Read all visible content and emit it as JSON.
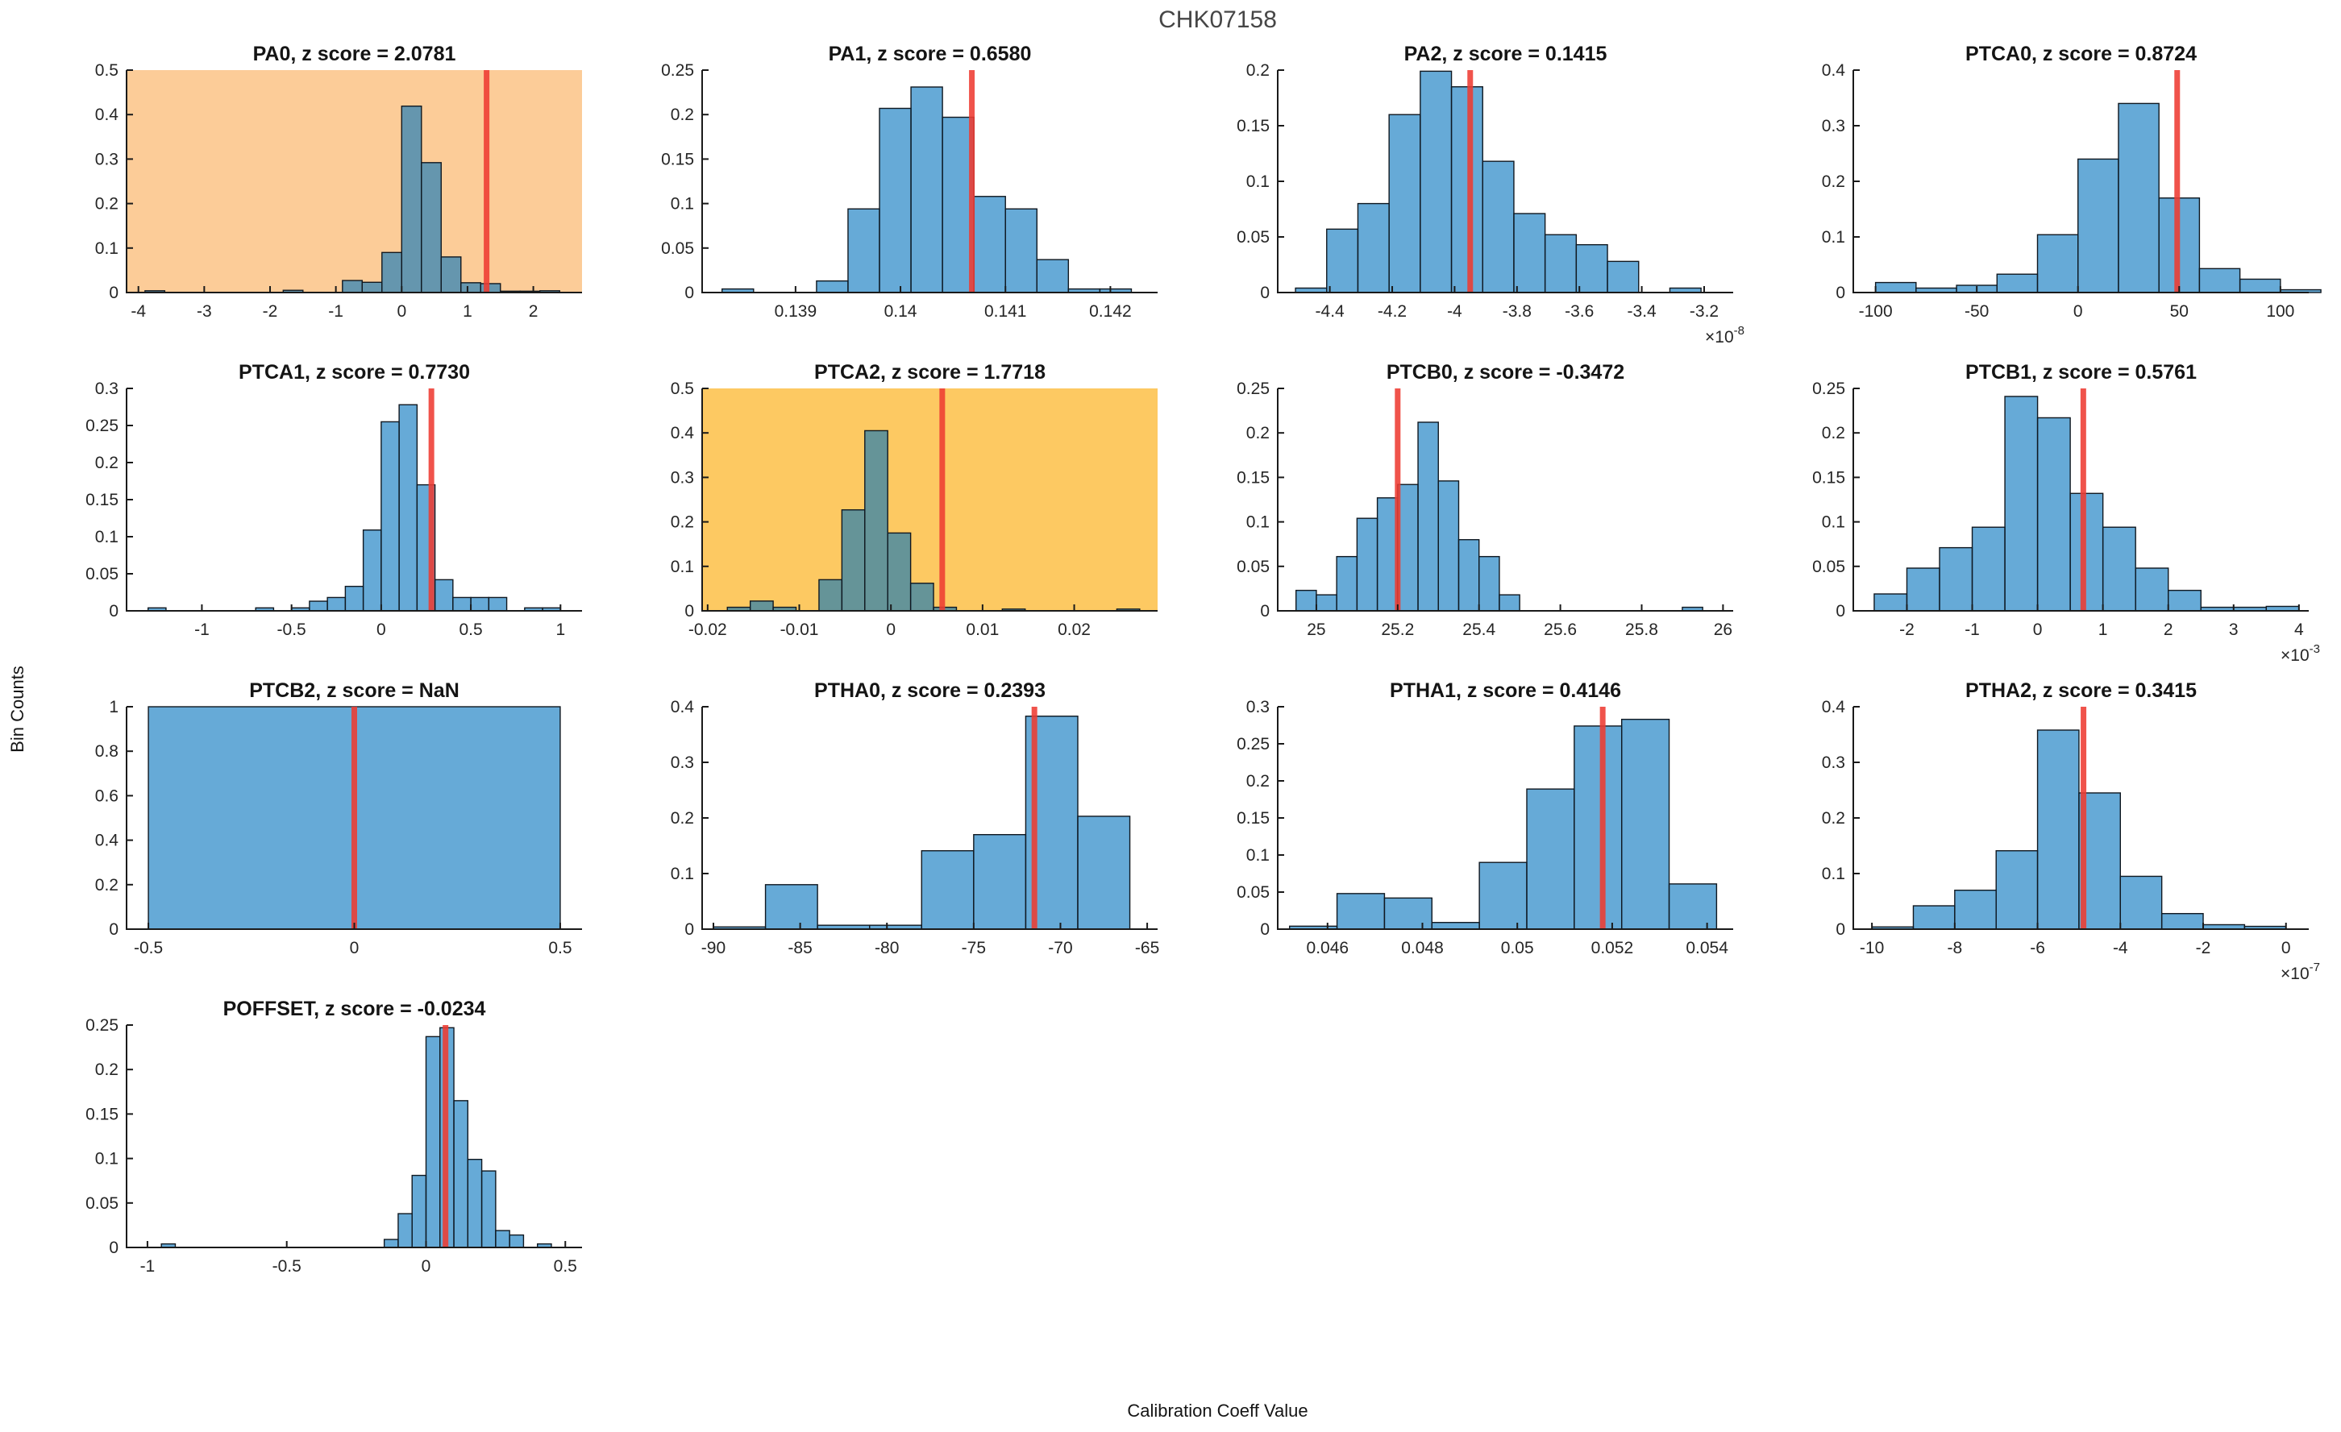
{
  "figure": {
    "title": "CHK07158",
    "xlabel": "Calibration Coeff Value",
    "ylabel": "Bin Counts"
  },
  "style": {
    "bar_color": "#0072BD",
    "bar_alpha": 0.6,
    "bar_edge_color": "#101820",
    "red_line_color": "#EE3B32",
    "highlight_orange": "#FCCC98",
    "highlight_yellow": "#FDC962",
    "spine_color": "#1a1a1a",
    "tick_label_color": "#262626",
    "title_color": "#141414"
  },
  "chart_data": [
    {
      "type": "bar",
      "param": "PA0",
      "z_score": "2.0781",
      "title": "PA0, z score = 2.0781",
      "row": 0,
      "col": 0,
      "highlight": "#FCCC98",
      "xlim": [
        -4.18,
        2.74
      ],
      "ylim": [
        0,
        0.5
      ],
      "xticks": [
        -4,
        -3,
        -2,
        -1,
        0,
        1,
        2
      ],
      "xtick_labels": [
        "-4",
        "-3",
        "-2",
        "-1",
        "0",
        "1",
        "2"
      ],
      "yticks": [
        0,
        0.1,
        0.2,
        0.3,
        0.4,
        0.5
      ],
      "ytick_labels": [
        "0",
        "0.1",
        "0.2",
        "0.3",
        "0.4",
        "0.5"
      ],
      "bin_start": -3.9,
      "bin_width": 0.3,
      "heights": [
        0.004,
        0,
        0,
        0,
        0,
        0,
        0,
        0.005,
        0,
        0,
        0.027,
        0.023,
        0.09,
        0.419,
        0.292,
        0.08,
        0.022,
        0.02,
        0.003,
        0.003,
        0.004
      ],
      "red_line": 1.29,
      "x_exponent": null
    },
    {
      "type": "bar",
      "param": "PA1",
      "z_score": "0.6580",
      "title": "PA1, z score = 0.6580",
      "row": 0,
      "col": 1,
      "highlight": null,
      "xlim": [
        0.13811,
        0.14245
      ],
      "ylim": [
        0,
        0.25
      ],
      "xticks": [
        0.139,
        0.14,
        0.141,
        0.142
      ],
      "xtick_labels": [
        "0.139",
        "0.14",
        "0.141",
        "0.142"
      ],
      "yticks": [
        0,
        0.05,
        0.1,
        0.15,
        0.2,
        0.25
      ],
      "ytick_labels": [
        "0",
        "0.05",
        "0.1",
        "0.15",
        "0.2",
        "0.25"
      ],
      "bin_start": 0.1383,
      "bin_width": 0.0003,
      "heights": [
        0.004,
        0,
        0,
        0.013,
        0.094,
        0.207,
        0.231,
        0.197,
        0.108,
        0.094,
        0.037,
        0.004,
        0.004
      ],
      "red_line": 0.14068,
      "x_exponent": null
    },
    {
      "type": "bar",
      "param": "PA2",
      "z_score": "0.1415",
      "title": "PA2, z score = 0.1415",
      "row": 0,
      "col": 2,
      "highlight": null,
      "xlim": [
        -4.567,
        -3.107
      ],
      "ylim": [
        0,
        0.2
      ],
      "xticks": [
        -4.4,
        -4.2,
        -4,
        -3.8,
        -3.6,
        -3.4,
        -3.2
      ],
      "xtick_labels": [
        "-4.4",
        "-4.2",
        "-4",
        "-3.8",
        "-3.6",
        "-3.4",
        "-3.2"
      ],
      "yticks": [
        0,
        0.05,
        0.1,
        0.15,
        0.2
      ],
      "ytick_labels": [
        "0",
        "0.05",
        "0.1",
        "0.15",
        "0.2"
      ],
      "bin_start": -4.51,
      "bin_width": 0.1,
      "heights": [
        0.004,
        0.057,
        0.08,
        0.16,
        0.199,
        0.185,
        0.118,
        0.071,
        0.052,
        0.043,
        0.028,
        0,
        0.004
      ],
      "red_line": -3.95,
      "x_exponent": "-8"
    },
    {
      "type": "bar",
      "param": "PTCA0",
      "z_score": "0.8724",
      "title": "PTCA0, z score = 0.8724",
      "row": 0,
      "col": 3,
      "highlight": null,
      "xlim": [
        -111,
        114
      ],
      "ylim": [
        0,
        0.4
      ],
      "xticks": [
        -100,
        -50,
        0,
        50,
        100
      ],
      "xtick_labels": [
        "-100",
        "-50",
        "0",
        "50",
        "100"
      ],
      "yticks": [
        0,
        0.1,
        0.2,
        0.3,
        0.4
      ],
      "ytick_labels": [
        "0",
        "0.1",
        "0.2",
        "0.3",
        "0.4"
      ],
      "bin_start": -100,
      "bin_width": 20,
      "heights": [
        0.018,
        0.008,
        0.013,
        0.033,
        0.104,
        0.24,
        0.34,
        0.17,
        0.043,
        0.024,
        0.005
      ],
      "red_line": 49,
      "x_exponent": null
    },
    {
      "type": "bar",
      "param": "PTCA1",
      "z_score": "0.7730",
      "title": "PTCA1, z score = 0.7730",
      "row": 1,
      "col": 0,
      "highlight": null,
      "xlim": [
        -1.42,
        1.12
      ],
      "ylim": [
        0,
        0.3
      ],
      "xticks": [
        -1,
        -0.5,
        0,
        0.5,
        1
      ],
      "xtick_labels": [
        "-1",
        "-0.5",
        "0",
        "0.5",
        "1"
      ],
      "yticks": [
        0,
        0.05,
        0.1,
        0.15,
        0.2,
        0.25,
        0.3
      ],
      "ytick_labels": [
        "0",
        "0.05",
        "0.1",
        "0.15",
        "0.2",
        "0.25",
        "0.3"
      ],
      "bin_start": -1.3,
      "bin_width": 0.1,
      "heights": [
        0.004,
        0,
        0,
        0,
        0,
        0,
        0.004,
        0,
        0.004,
        0.013,
        0.018,
        0.033,
        0.109,
        0.255,
        0.278,
        0.17,
        0.042,
        0.018,
        0.018,
        0.018,
        0,
        0.004,
        0.004
      ],
      "red_line": 0.28,
      "x_exponent": null
    },
    {
      "type": "bar",
      "param": "PTCA2",
      "z_score": "1.7718",
      "title": "PTCA2, z score = 1.7718",
      "row": 1,
      "col": 1,
      "highlight": "#FDC962",
      "xlim": [
        -0.0206,
        0.0291
      ],
      "ylim": [
        0,
        0.5
      ],
      "xticks": [
        -0.02,
        -0.01,
        0,
        0.01,
        0.02
      ],
      "xtick_labels": [
        "-0.02",
        "-0.01",
        "0",
        "0.01",
        "0.02"
      ],
      "yticks": [
        0,
        0.1,
        0.2,
        0.3,
        0.4,
        0.5
      ],
      "ytick_labels": [
        "0",
        "0.1",
        "0.2",
        "0.3",
        "0.4",
        "0.5"
      ],
      "bin_start": -0.01785,
      "bin_width": 0.0025,
      "heights": [
        0.008,
        0.022,
        0.008,
        0,
        0.07,
        0.227,
        0.405,
        0.175,
        0.062,
        0.008,
        0,
        0,
        0.004,
        0,
        0,
        0,
        0,
        0.004
      ],
      "red_line": 0.0056,
      "x_exponent": null
    },
    {
      "type": "bar",
      "param": "PTCB0",
      "z_score": "-0.3472",
      "title": "PTCB0, z score = -0.3472",
      "row": 1,
      "col": 2,
      "highlight": null,
      "xlim": [
        24.905,
        26.025
      ],
      "ylim": [
        0,
        0.25
      ],
      "xticks": [
        25,
        25.2,
        25.4,
        25.6,
        25.8,
        26
      ],
      "xtick_labels": [
        "25",
        "25.2",
        "25.4",
        "25.6",
        "25.8",
        "26"
      ],
      "yticks": [
        0,
        0.05,
        0.1,
        0.15,
        0.2,
        0.25
      ],
      "ytick_labels": [
        "0",
        "0.05",
        "0.1",
        "0.15",
        "0.2",
        "0.25"
      ],
      "bin_start": 24.95,
      "bin_width": 0.05,
      "heights": [
        0.023,
        0.018,
        0.061,
        0.104,
        0.127,
        0.142,
        0.212,
        0.146,
        0.08,
        0.061,
        0.018,
        0,
        0,
        0,
        0,
        0,
        0,
        0,
        0,
        0.004
      ],
      "red_line": 25.2,
      "x_exponent": null
    },
    {
      "type": "bar",
      "param": "PTCB1",
      "z_score": "0.5761",
      "title": "PTCB1, z score = 0.5761",
      "row": 1,
      "col": 3,
      "highlight": null,
      "xlim": [
        -2.82,
        4.15
      ],
      "ylim": [
        0,
        0.25
      ],
      "xticks": [
        -2,
        -1,
        0,
        1,
        2,
        3,
        4
      ],
      "xtick_labels": [
        "-2",
        "-1",
        "0",
        "1",
        "2",
        "3",
        "4"
      ],
      "yticks": [
        0,
        0.05,
        0.1,
        0.15,
        0.2,
        0.25
      ],
      "ytick_labels": [
        "0",
        "0.05",
        "0.1",
        "0.15",
        "0.2",
        "0.25"
      ],
      "bin_start": -2.5,
      "bin_width": 0.5,
      "heights": [
        0.019,
        0.048,
        0.071,
        0.094,
        0.241,
        0.217,
        0.132,
        0.094,
        0.048,
        0.023,
        0.004,
        0.004,
        0.005
      ],
      "red_line": 0.7,
      "x_exponent": "-3"
    },
    {
      "type": "bar",
      "param": "PTCB2",
      "z_score": "NaN",
      "title": "PTCB2, z score = NaN",
      "row": 2,
      "col": 0,
      "highlight": null,
      "xlim": [
        -0.553,
        0.553
      ],
      "ylim": [
        0,
        1
      ],
      "xticks": [
        -0.5,
        0,
        0.5
      ],
      "xtick_labels": [
        "-0.5",
        "0",
        "0.5"
      ],
      "yticks": [
        0,
        0.2,
        0.4,
        0.6,
        0.8,
        1
      ],
      "ytick_labels": [
        "0",
        "0.2",
        "0.4",
        "0.6",
        "0.8",
        "1"
      ],
      "bin_start": -0.5,
      "bin_width": 1.0,
      "heights": [
        1
      ],
      "red_line": 0,
      "x_exponent": null
    },
    {
      "type": "bar",
      "param": "PTHA0",
      "z_score": "0.2393",
      "title": "PTHA0, z score = 0.2393",
      "row": 2,
      "col": 1,
      "highlight": null,
      "xlim": [
        -90.65,
        -64.4
      ],
      "ylim": [
        0,
        0.4
      ],
      "xticks": [
        -90,
        -85,
        -80,
        -75,
        -70,
        -65
      ],
      "xtick_labels": [
        "-90",
        "-85",
        "-80",
        "-75",
        "-70",
        "-65"
      ],
      "yticks": [
        0,
        0.1,
        0.2,
        0.3,
        0.4
      ],
      "ytick_labels": [
        "0",
        "0.1",
        "0.2",
        "0.3",
        "0.4"
      ],
      "bin_start": -90,
      "bin_width": 3,
      "heights": [
        0.004,
        0.08,
        0.007,
        0.007,
        0.141,
        0.17,
        0.383,
        0.203
      ],
      "red_line": -71.5,
      "x_exponent": null
    },
    {
      "type": "bar",
      "param": "PTHA1",
      "z_score": "0.4146",
      "title": "PTHA1, z score = 0.4146",
      "row": 2,
      "col": 2,
      "highlight": null,
      "xlim": [
        0.04495,
        0.05455
      ],
      "ylim": [
        0,
        0.3
      ],
      "xticks": [
        0.046,
        0.048,
        0.05,
        0.052,
        0.054
      ],
      "xtick_labels": [
        "0.046",
        "0.048",
        "0.05",
        "0.052",
        "0.054"
      ],
      "yticks": [
        0,
        0.05,
        0.1,
        0.15,
        0.2,
        0.25,
        0.3
      ],
      "ytick_labels": [
        "0",
        "0.05",
        "0.1",
        "0.15",
        "0.2",
        "0.25",
        "0.3"
      ],
      "bin_start": 0.0452,
      "bin_width": 0.001,
      "heights": [
        0.004,
        0.048,
        0.042,
        0.009,
        0.09,
        0.189,
        0.274,
        0.283,
        0.061
      ],
      "red_line": 0.0518,
      "x_exponent": null
    },
    {
      "type": "bar",
      "param": "PTHA2",
      "z_score": "0.3415",
      "title": "PTHA2, z score = 0.3415",
      "row": 2,
      "col": 3,
      "highlight": null,
      "xlim": [
        -10.45,
        0.55
      ],
      "ylim": [
        0,
        0.4
      ],
      "xticks": [
        -10,
        -8,
        -6,
        -4,
        -2,
        0
      ],
      "xtick_labels": [
        "-10",
        "-8",
        "-6",
        "-4",
        "-2",
        "0"
      ],
      "yticks": [
        0,
        0.1,
        0.2,
        0.3,
        0.4
      ],
      "ytick_labels": [
        "0",
        "0.1",
        "0.2",
        "0.3",
        "0.4"
      ],
      "bin_start": -10,
      "bin_width": 1,
      "heights": [
        0.004,
        0.042,
        0.07,
        0.141,
        0.358,
        0.245,
        0.095,
        0.028,
        0.008,
        0.005
      ],
      "red_line": -4.89,
      "x_exponent": "-7"
    },
    {
      "type": "bar",
      "param": "POFFSET",
      "z_score": "-0.0234",
      "title": "POFFSET, z score = -0.0234",
      "row": 3,
      "col": 0,
      "highlight": null,
      "xlim": [
        -1.075,
        0.56
      ],
      "ylim": [
        0,
        0.25
      ],
      "xticks": [
        -1,
        -0.5,
        0,
        0.5
      ],
      "xtick_labels": [
        "-1",
        "-0.5",
        "0",
        "0.5"
      ],
      "yticks": [
        0,
        0.05,
        0.1,
        0.15,
        0.2,
        0.25
      ],
      "ytick_labels": [
        "0",
        "0.05",
        "0.1",
        "0.15",
        "0.2",
        "0.25"
      ],
      "bin_start": -0.95,
      "bin_width": 0.05,
      "heights": [
        0.004,
        0,
        0,
        0,
        0,
        0,
        0,
        0,
        0,
        0,
        0,
        0,
        0,
        0,
        0,
        0,
        0.009,
        0.038,
        0.081,
        0.237,
        0.247,
        0.165,
        0.099,
        0.086,
        0.019,
        0.014,
        0,
        0.004
      ],
      "red_line": 0.07,
      "x_exponent": null
    }
  ]
}
